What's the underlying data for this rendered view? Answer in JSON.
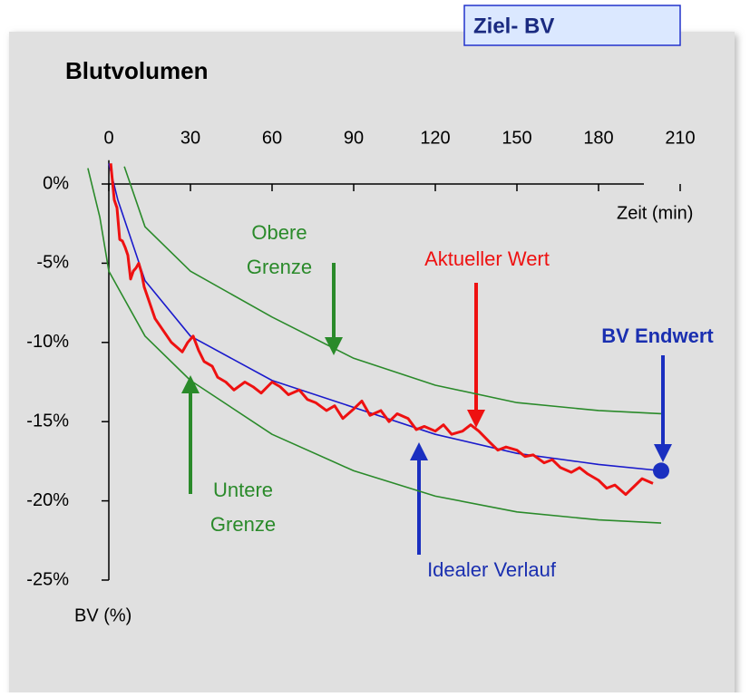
{
  "chart_data": {
    "type": "line",
    "title": "Blutvolumen",
    "badge": "Ziel- BV",
    "x_label": "Zeit (min)",
    "y_label": "BV (%)",
    "xlim": [
      -10,
      215
    ],
    "ylim": [
      -25,
      1.5
    ],
    "xticks": [
      0,
      30,
      60,
      90,
      120,
      150,
      180,
      210
    ],
    "yticks": [
      {
        "value": 0,
        "label": "0%"
      },
      {
        "value": -5,
        "label": "-5%"
      },
      {
        "value": -10,
        "label": "-10%"
      },
      {
        "value": -15,
        "label": "-15%"
      },
      {
        "value": -20,
        "label": "-20%"
      },
      {
        "value": -25,
        "label": "-25%"
      }
    ],
    "series": [
      {
        "color": "#2a8a2a",
        "x": [
          5.7,
          13.3,
          30,
          60,
          90,
          120,
          150,
          180,
          203
        ],
        "values": [
          1.1,
          -2.7,
          -5.5,
          -8.4,
          -11,
          -12.7,
          -13.8,
          -14.3,
          -14.5
        ]
      },
      {
        "color": "#2a8a2a",
        "x": [
          -7.7,
          -3.3,
          0,
          13.3,
          30,
          60,
          90,
          120,
          150,
          180,
          203
        ],
        "values": [
          1,
          -2.1,
          -5.5,
          -9.6,
          -12.4,
          -15.8,
          -18.1,
          -19.7,
          -20.7,
          -21.2,
          -21.4
        ]
      },
      {
        "color": "#1a1acc",
        "x": [
          0,
          3.3,
          13.3,
          30,
          60,
          90,
          120,
          150,
          180,
          203
        ],
        "values": [
          1.3,
          -1,
          -6.1,
          -9.6,
          -12.4,
          -14.1,
          -15.8,
          -17,
          -17.7,
          -18.1
        ]
      },
      {
        "color": "#ee1111",
        "x": [
          0.7,
          2,
          3,
          4,
          5,
          6,
          7,
          8,
          9,
          10,
          11,
          12,
          13,
          14,
          15,
          17,
          19,
          21,
          23,
          25,
          27,
          29,
          31,
          33,
          35,
          38,
          40,
          43,
          46,
          50,
          53,
          56,
          60,
          63,
          66,
          70,
          73,
          76,
          80,
          83,
          86,
          90,
          93,
          96,
          100,
          103,
          106,
          110,
          113,
          116,
          120,
          123,
          126,
          130,
          133,
          136,
          140,
          143,
          146,
          150,
          153,
          156,
          160,
          163,
          166,
          170,
          173,
          176,
          180,
          183,
          186,
          190,
          193,
          196,
          200
        ],
        "values": [
          1.3,
          -1,
          -1.5,
          -3.5,
          -3.6,
          -4,
          -4.5,
          -6,
          -5.5,
          -5.3,
          -5,
          -5.6,
          -6.5,
          -7,
          -7.5,
          -8.5,
          -9,
          -9.5,
          -10,
          -10.3,
          -10.6,
          -10,
          -9.6,
          -10.5,
          -11.2,
          -11.5,
          -12.2,
          -12.5,
          -13,
          -12.5,
          -12.8,
          -13.2,
          -12.5,
          -12.8,
          -13.3,
          -13,
          -13.6,
          -13.8,
          -14.3,
          -14,
          -14.8,
          -14.2,
          -13.7,
          -14.6,
          -14.3,
          -15,
          -14.5,
          -14.8,
          -15.5,
          -15.3,
          -15.6,
          -15.2,
          -15.8,
          -15.6,
          -15.2,
          -15.6,
          -16.3,
          -16.8,
          -16.6,
          -16.8,
          -17.2,
          -17.1,
          -17.6,
          -17.4,
          -17.9,
          -18.2,
          -17.9,
          -18.3,
          -18.7,
          -19.2,
          -19,
          -19.6,
          -19.1,
          -18.6,
          -18.9
        ]
      }
    ],
    "end_point": {
      "x": 203,
      "value": -18.1,
      "color": "#1a2fc0"
    },
    "annotations": [
      {
        "lines": [
          "Obere",
          "Grenze"
        ],
        "color": "#2a8a2a"
      },
      {
        "lines": [
          "Aktueller Wert"
        ],
        "color": "#ee1111"
      },
      {
        "lines": [
          "BV Endwert"
        ],
        "color": "#1a2fb0"
      },
      {
        "lines": [
          "Untere",
          "Grenze"
        ],
        "color": "#2a8a2a"
      },
      {
        "lines": [
          "Idealer Verlauf"
        ],
        "color": "#1a2fb0"
      }
    ]
  }
}
